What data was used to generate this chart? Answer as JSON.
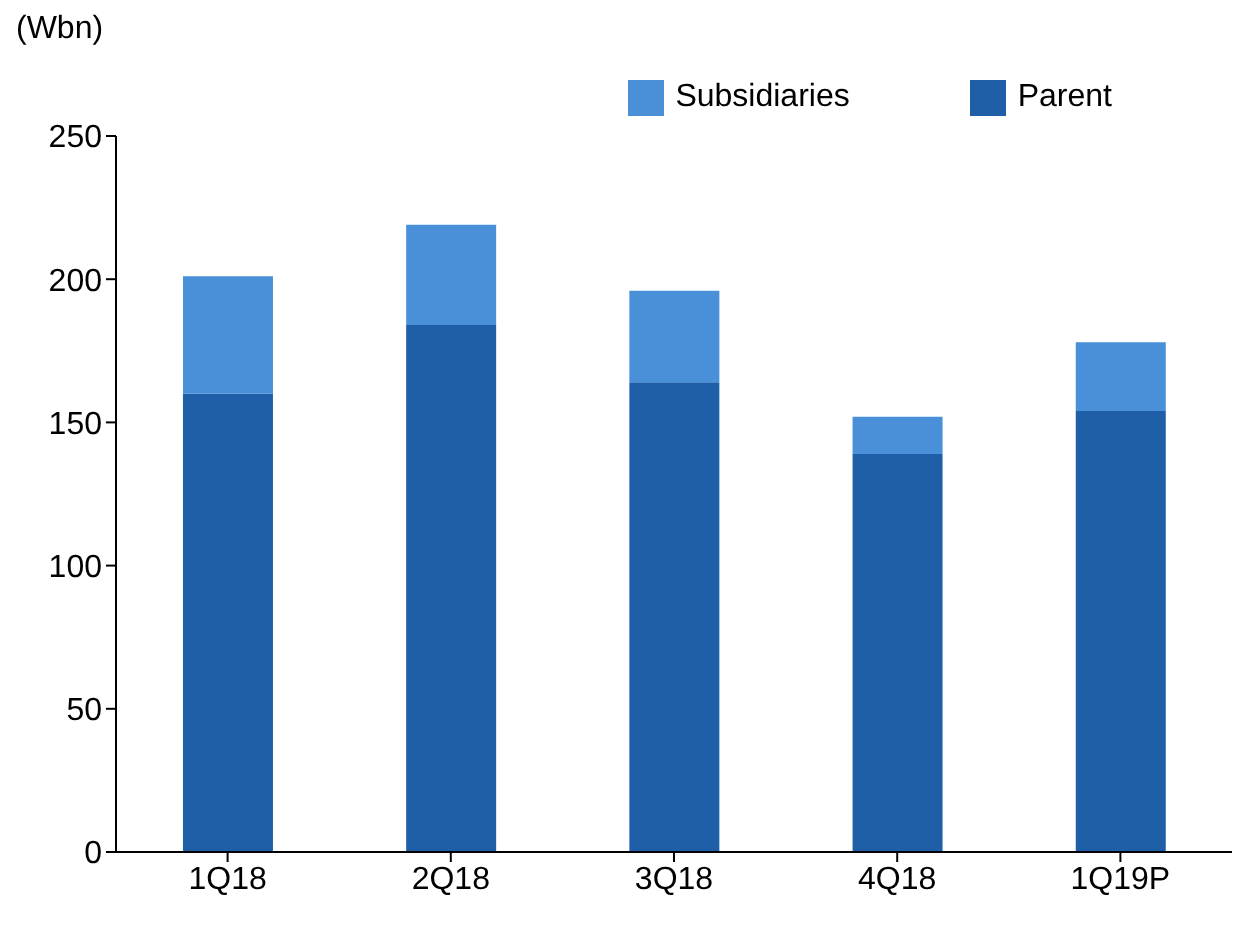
{
  "chart_data": {
    "type": "bar",
    "stacked": true,
    "ylabel": "(Wbn)",
    "categories": [
      "1Q18",
      "2Q18",
      "3Q18",
      "4Q18",
      "1Q19P"
    ],
    "series": [
      {
        "name": "Parent",
        "color": "#1f5fa8",
        "values": [
          160,
          184,
          164,
          139,
          154
        ]
      },
      {
        "name": "Subsidiaries",
        "color": "#4a90d9",
        "values": [
          41,
          35,
          32,
          13,
          24
        ]
      }
    ],
    "ylim": [
      0,
      250
    ],
    "yticks": [
      0,
      50,
      100,
      150,
      200,
      250
    ],
    "grid": false,
    "legend": "top right"
  }
}
